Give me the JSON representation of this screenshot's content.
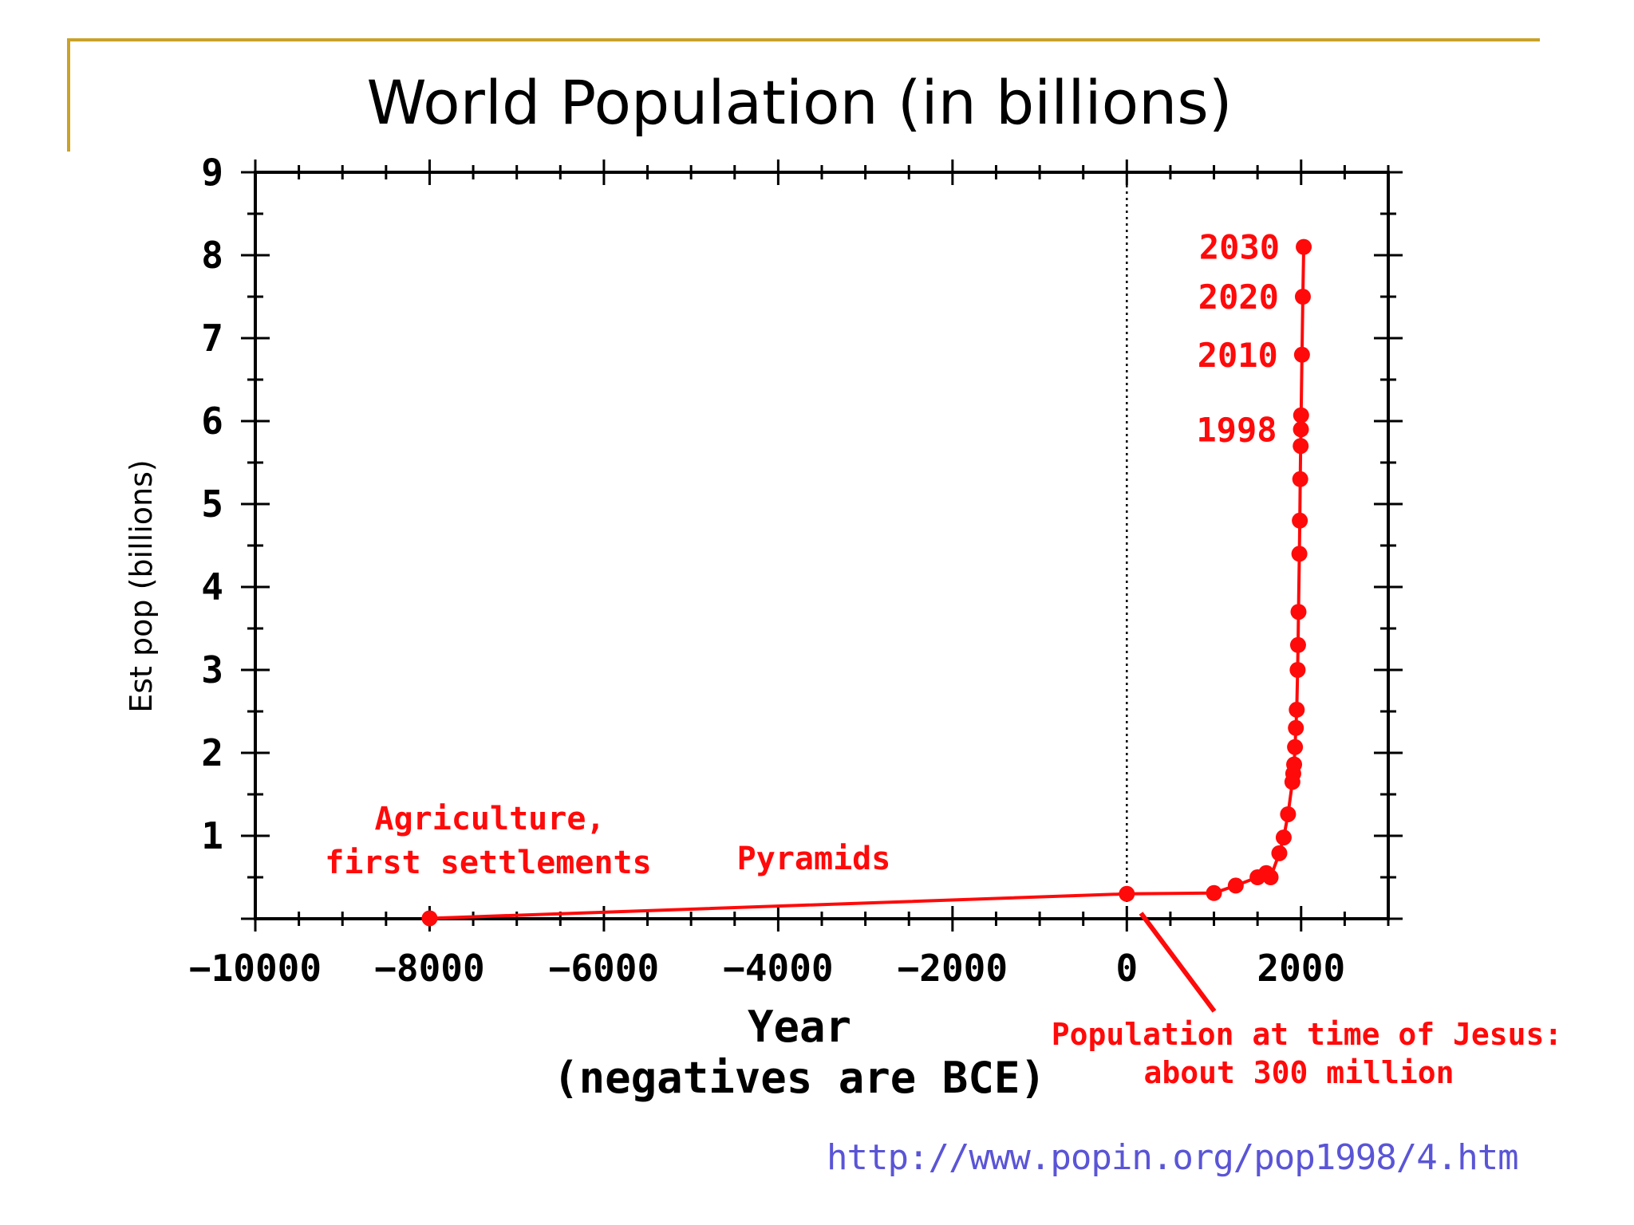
{
  "colors": {
    "frame": "#c9a227",
    "axis": "#000000",
    "series": "#ff0a0a",
    "url": "#5a55d6"
  },
  "source_url": "http://www.popin.org/pop1998/4.htm",
  "chart_data": {
    "type": "line",
    "title": "World Population (in billions)",
    "xlabel": "Year",
    "xlabel_note": "(negatives are BCE)",
    "ylabel": "Est pop (billions)",
    "xlim": [
      -10000,
      3000
    ],
    "ylim": [
      0,
      9
    ],
    "xticks": [
      -10000,
      -8000,
      -6000,
      -4000,
      -2000,
      0,
      2000
    ],
    "yticks": [
      1,
      2,
      3,
      4,
      5,
      6,
      7,
      8,
      9
    ],
    "reference_line": {
      "x": 0,
      "style": "dotted"
    },
    "series": [
      {
        "name": "World population",
        "x": [
          -8000,
          0,
          1000,
          1250,
          1500,
          1600,
          1650,
          1750,
          1800,
          1850,
          1900,
          1910,
          1920,
          1930,
          1940,
          1950,
          1960,
          1965,
          1970,
          1980,
          1985,
          1990,
          1995,
          1998,
          2000,
          2010,
          2020,
          2030
        ],
        "y": [
          0.005,
          0.3,
          0.31,
          0.4,
          0.5,
          0.55,
          0.5,
          0.79,
          0.98,
          1.26,
          1.65,
          1.75,
          1.86,
          2.07,
          2.3,
          2.52,
          3.0,
          3.3,
          3.7,
          4.4,
          4.8,
          5.3,
          5.7,
          5.9,
          6.07,
          6.8,
          7.5,
          8.1
        ]
      }
    ],
    "point_labels": [
      {
        "text": "2030",
        "x": 2030,
        "y": 8.1
      },
      {
        "text": "2020",
        "x": 2020,
        "y": 7.5
      },
      {
        "text": "2010",
        "x": 2010,
        "y": 6.8
      },
      {
        "text": "1998",
        "x": 1998,
        "y": 5.9
      }
    ],
    "annotations": [
      {
        "lines": [
          "Agriculture,",
          "first settlements"
        ]
      },
      {
        "lines": [
          "Pyramids"
        ]
      },
      {
        "lines": [
          "Population at time of Jesus:",
          "about 300 million"
        ]
      }
    ]
  }
}
